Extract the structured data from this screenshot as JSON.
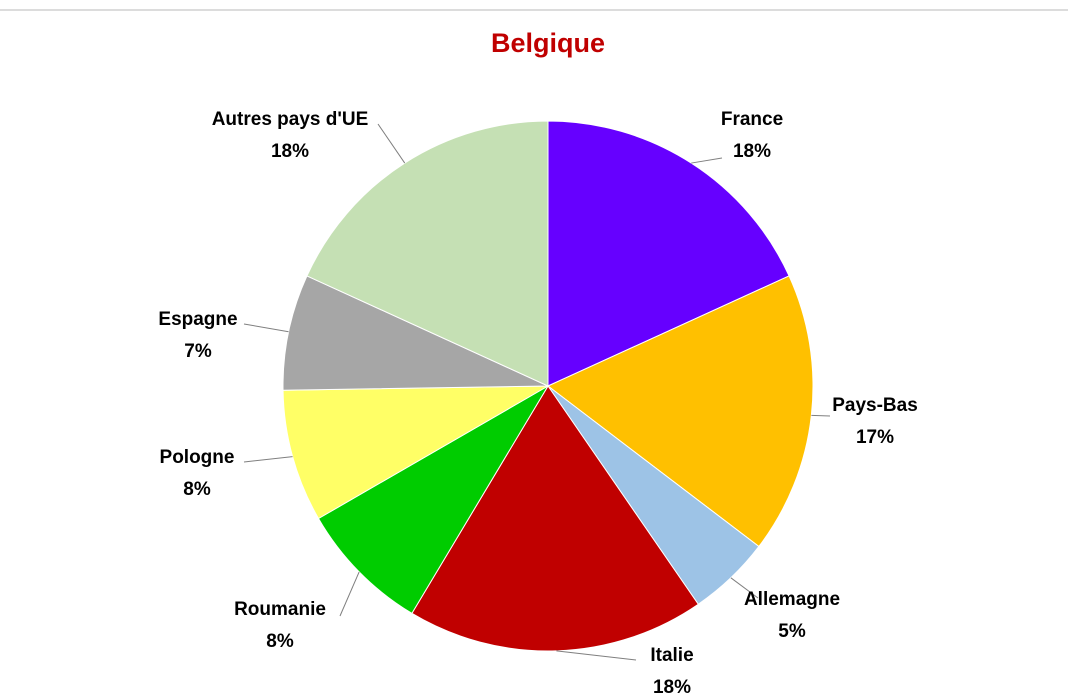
{
  "chart_data": {
    "type": "pie",
    "title": "Belgique",
    "categories": [
      "France",
      "Pays-Bas",
      "Allemagne",
      "Italie",
      "Roumanie",
      "Pologne",
      "Espagne",
      "Autres pays d'UE"
    ],
    "values": [
      18,
      17,
      5,
      18,
      8,
      8,
      7,
      18
    ],
    "value_labels": [
      "18%",
      "17%",
      "5%",
      "18%",
      "8%",
      "8%",
      "7%",
      "18%"
    ],
    "colors": [
      "#6600ff",
      "#ffc000",
      "#9dc3e6",
      "#c00000",
      "#00cc00",
      "#ffff66",
      "#a6a6a6",
      "#c5e0b4"
    ]
  }
}
